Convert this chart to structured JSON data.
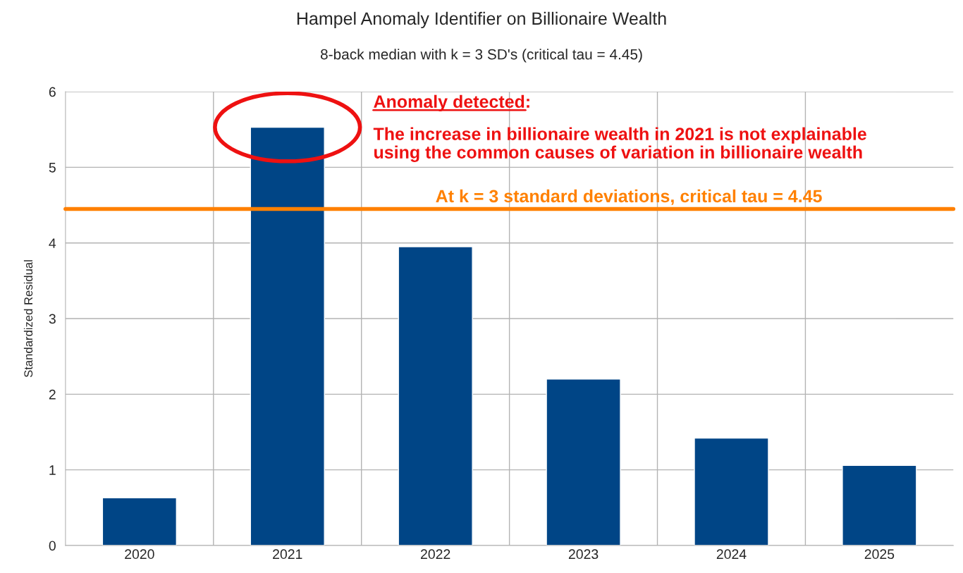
{
  "chart_data": {
    "type": "bar",
    "title": "Hampel Anomaly Identifier on Billionaire Wealth",
    "subtitle": "8-back median with k = 3 SD's (critical tau = 4.45)",
    "ylabel": "Standardized Residual",
    "categories": [
      "2020",
      "2021",
      "2022",
      "2023",
      "2024",
      "2025"
    ],
    "series": [
      {
        "color": "#004586",
        "values": [
          0.63,
          5.53,
          3.95,
          2.2,
          1.42,
          1.06
        ]
      }
    ],
    "ylim": [
      0,
      6
    ],
    "yticks": [
      0,
      1,
      2,
      3,
      4,
      5,
      6
    ],
    "grid": true,
    "legend": false,
    "ref_lines": [
      {
        "axis": "y",
        "value": 4.45,
        "label": "At k = 3 standard deviations, critical tau = 4.45",
        "color": "#ff8000",
        "line_style": "solid"
      }
    ],
    "annotations": [
      "Anomaly detected:",
      "The increase in billionaire wealth in 2021 is not explainable\nusing the common causes of variation in billionaire wealth"
    ]
  }
}
